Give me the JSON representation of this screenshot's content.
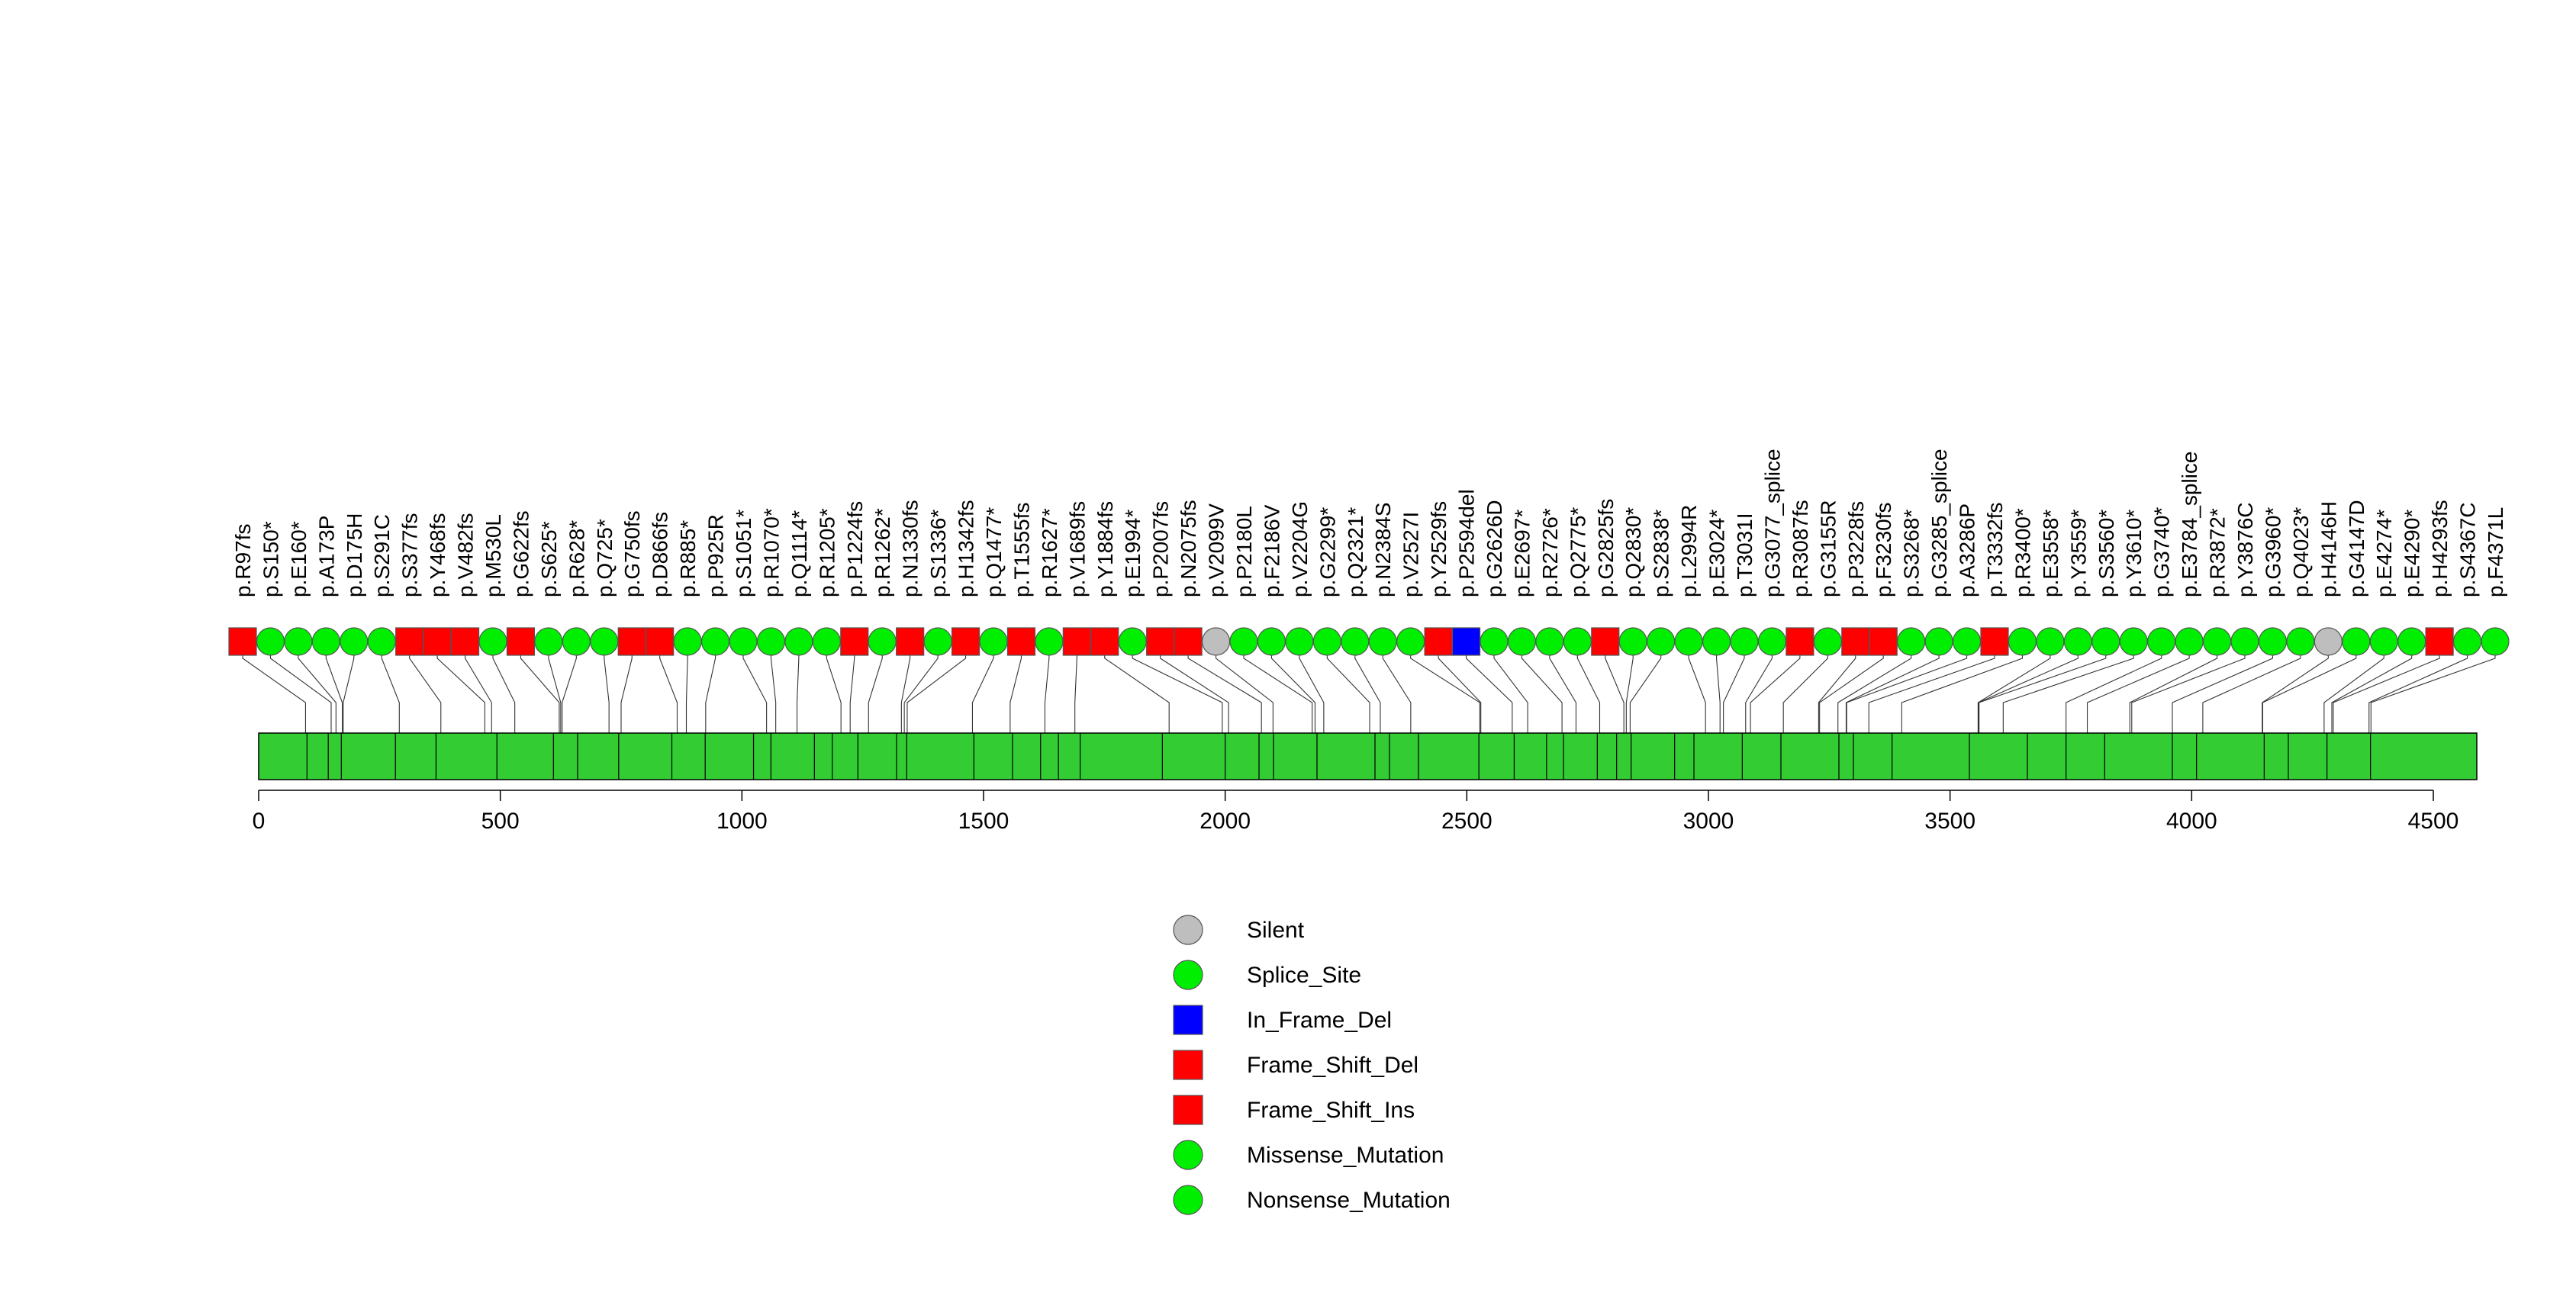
{
  "colors": {
    "Silent": "#BEBEBE",
    "Splice_Site": "#00EE00",
    "In_Frame_Del": "#0000FF",
    "Frame_Shift_Del": "#FF0000",
    "Frame_Shift_Ins": "#FF0000",
    "Missense_Mutation": "#00EE00",
    "Nonsense_Mutation": "#00EE00",
    "protein": "#33CC33"
  },
  "chart_data": {
    "type": "lollipop",
    "title": "",
    "xlabel": "",
    "ylabel": "",
    "xlim": [
      0,
      4590
    ],
    "protein_length": 4590,
    "xticks": [
      0,
      500,
      1000,
      1500,
      2000,
      2500,
      3000,
      3500,
      4000,
      4500
    ],
    "domain_boundaries": [
      100,
      144,
      171,
      283,
      367,
      493,
      610,
      660,
      745,
      855,
      924,
      1024,
      1060,
      1150,
      1187,
      1240,
      1320,
      1341,
      1480,
      1560,
      1618,
      1655,
      1700,
      1870,
      2000,
      2070,
      2100,
      2190,
      2310,
      2340,
      2400,
      2525,
      2598,
      2665,
      2700,
      2770,
      2810,
      2840,
      2930,
      2970,
      3070,
      3150,
      3270,
      3300,
      3380,
      3540,
      3660,
      3740,
      3820,
      3960,
      4010,
      4150,
      4200,
      4280,
      4370
    ],
    "legend": [
      {
        "label": "Silent",
        "shape": "circle",
        "color": "#BEBEBE"
      },
      {
        "label": "Splice_Site",
        "shape": "circle",
        "color": "#00EE00"
      },
      {
        "label": "In_Frame_Del",
        "shape": "square",
        "color": "#0000FF"
      },
      {
        "label": "Frame_Shift_Del",
        "shape": "square",
        "color": "#FF0000"
      },
      {
        "label": "Frame_Shift_Ins",
        "shape": "square",
        "color": "#FF0000"
      },
      {
        "label": "Missense_Mutation",
        "shape": "circle",
        "color": "#00EE00"
      },
      {
        "label": "Nonsense_Mutation",
        "shape": "circle",
        "color": "#00EE00"
      }
    ],
    "mutations": [
      {
        "label": "p.R97fs",
        "pos": 97,
        "type": "Frame_Shift_Del"
      },
      {
        "label": "p.S150*",
        "pos": 150,
        "type": "Nonsense_Mutation"
      },
      {
        "label": "p.E160*",
        "pos": 160,
        "type": "Nonsense_Mutation"
      },
      {
        "label": "p.A173P",
        "pos": 173,
        "type": "Missense_Mutation"
      },
      {
        "label": "p.D175H",
        "pos": 175,
        "type": "Missense_Mutation"
      },
      {
        "label": "p.S291C",
        "pos": 291,
        "type": "Missense_Mutation"
      },
      {
        "label": "p.S377fs",
        "pos": 377,
        "type": "Frame_Shift_Del"
      },
      {
        "label": "p.Y468fs",
        "pos": 468,
        "type": "Frame_Shift_Ins"
      },
      {
        "label": "p.V482fs",
        "pos": 482,
        "type": "Frame_Shift_Del"
      },
      {
        "label": "p.M530L",
        "pos": 530,
        "type": "Missense_Mutation"
      },
      {
        "label": "p.G622fs",
        "pos": 622,
        "type": "Frame_Shift_Del"
      },
      {
        "label": "p.S625*",
        "pos": 625,
        "type": "Nonsense_Mutation"
      },
      {
        "label": "p.R628*",
        "pos": 628,
        "type": "Nonsense_Mutation"
      },
      {
        "label": "p.Q725*",
        "pos": 725,
        "type": "Nonsense_Mutation"
      },
      {
        "label": "p.G750fs",
        "pos": 750,
        "type": "Frame_Shift_Del"
      },
      {
        "label": "p.D866fs",
        "pos": 866,
        "type": "Frame_Shift_Del"
      },
      {
        "label": "p.R885*",
        "pos": 885,
        "type": "Nonsense_Mutation"
      },
      {
        "label": "p.P925R",
        "pos": 925,
        "type": "Missense_Mutation"
      },
      {
        "label": "p.S1051*",
        "pos": 1051,
        "type": "Nonsense_Mutation"
      },
      {
        "label": "p.R1070*",
        "pos": 1070,
        "type": "Nonsense_Mutation"
      },
      {
        "label": "p.Q1114*",
        "pos": 1114,
        "type": "Nonsense_Mutation"
      },
      {
        "label": "p.R1205*",
        "pos": 1205,
        "type": "Nonsense_Mutation"
      },
      {
        "label": "p.P1224fs",
        "pos": 1224,
        "type": "Frame_Shift_Del"
      },
      {
        "label": "p.R1262*",
        "pos": 1262,
        "type": "Nonsense_Mutation"
      },
      {
        "label": "p.N1330fs",
        "pos": 1330,
        "type": "Frame_Shift_Del"
      },
      {
        "label": "p.S1336*",
        "pos": 1336,
        "type": "Nonsense_Mutation"
      },
      {
        "label": "p.H1342fs",
        "pos": 1342,
        "type": "Frame_Shift_Del"
      },
      {
        "label": "p.Q1477*",
        "pos": 1477,
        "type": "Nonsense_Mutation"
      },
      {
        "label": "p.T1555fs",
        "pos": 1555,
        "type": "Frame_Shift_Del"
      },
      {
        "label": "p.R1627*",
        "pos": 1627,
        "type": "Nonsense_Mutation"
      },
      {
        "label": "p.V1689fs",
        "pos": 1689,
        "type": "Frame_Shift_Del"
      },
      {
        "label": "p.Y1884fs",
        "pos": 1884,
        "type": "Frame_Shift_Ins"
      },
      {
        "label": "p.E1994*",
        "pos": 1994,
        "type": "Nonsense_Mutation"
      },
      {
        "label": "p.P2007fs",
        "pos": 2007,
        "type": "Frame_Shift_Del"
      },
      {
        "label": "p.N2075fs",
        "pos": 2075,
        "type": "Frame_Shift_Del"
      },
      {
        "label": "p.V2099V",
        "pos": 2099,
        "type": "Silent"
      },
      {
        "label": "p.P2180L",
        "pos": 2180,
        "type": "Missense_Mutation"
      },
      {
        "label": "p.F2186V",
        "pos": 2186,
        "type": "Missense_Mutation"
      },
      {
        "label": "p.V2204G",
        "pos": 2204,
        "type": "Missense_Mutation"
      },
      {
        "label": "p.G2299*",
        "pos": 2299,
        "type": "Nonsense_Mutation"
      },
      {
        "label": "p.Q2321*",
        "pos": 2321,
        "type": "Nonsense_Mutation"
      },
      {
        "label": "p.N2384S",
        "pos": 2384,
        "type": "Missense_Mutation"
      },
      {
        "label": "p.V2527I",
        "pos": 2527,
        "type": "Missense_Mutation"
      },
      {
        "label": "p.Y2529fs",
        "pos": 2529,
        "type": "Frame_Shift_Del"
      },
      {
        "label": "p.P2594del",
        "pos": 2594,
        "type": "In_Frame_Del"
      },
      {
        "label": "p.G2626D",
        "pos": 2626,
        "type": "Missense_Mutation"
      },
      {
        "label": "p.E2697*",
        "pos": 2697,
        "type": "Nonsense_Mutation"
      },
      {
        "label": "p.R2726*",
        "pos": 2726,
        "type": "Nonsense_Mutation"
      },
      {
        "label": "p.Q2775*",
        "pos": 2775,
        "type": "Nonsense_Mutation"
      },
      {
        "label": "p.G2825fs",
        "pos": 2825,
        "type": "Frame_Shift_Del"
      },
      {
        "label": "p.Q2830*",
        "pos": 2830,
        "type": "Nonsense_Mutation"
      },
      {
        "label": "p.S2838*",
        "pos": 2838,
        "type": "Nonsense_Mutation"
      },
      {
        "label": "p.L2994R",
        "pos": 2994,
        "type": "Missense_Mutation"
      },
      {
        "label": "p.E3024*",
        "pos": 3024,
        "type": "Nonsense_Mutation"
      },
      {
        "label": "p.T3031I",
        "pos": 3031,
        "type": "Missense_Mutation"
      },
      {
        "label": "p.G3077_splice",
        "pos": 3077,
        "type": "Splice_Site"
      },
      {
        "label": "p.R3087fs",
        "pos": 3087,
        "type": "Frame_Shift_Del"
      },
      {
        "label": "p.G3155R",
        "pos": 3155,
        "type": "Missense_Mutation"
      },
      {
        "label": "p.P3228fs",
        "pos": 3228,
        "type": "Frame_Shift_Del"
      },
      {
        "label": "p.F3230fs",
        "pos": 3230,
        "type": "Frame_Shift_Del"
      },
      {
        "label": "p.S3268*",
        "pos": 3268,
        "type": "Nonsense_Mutation"
      },
      {
        "label": "p.G3285_splice",
        "pos": 3285,
        "type": "Splice_Site"
      },
      {
        "label": "p.A3286P",
        "pos": 3286,
        "type": "Missense_Mutation"
      },
      {
        "label": "p.T3332fs",
        "pos": 3332,
        "type": "Frame_Shift_Del"
      },
      {
        "label": "p.R3400*",
        "pos": 3400,
        "type": "Nonsense_Mutation"
      },
      {
        "label": "p.E3558*",
        "pos": 3558,
        "type": "Nonsense_Mutation"
      },
      {
        "label": "p.Y3559*",
        "pos": 3559,
        "type": "Nonsense_Mutation"
      },
      {
        "label": "p.S3560*",
        "pos": 3560,
        "type": "Nonsense_Mutation"
      },
      {
        "label": "p.Y3610*",
        "pos": 3610,
        "type": "Nonsense_Mutation"
      },
      {
        "label": "p.G3740*",
        "pos": 3740,
        "type": "Nonsense_Mutation"
      },
      {
        "label": "p.E3784_splice",
        "pos": 3784,
        "type": "Splice_Site"
      },
      {
        "label": "p.R3872*",
        "pos": 3872,
        "type": "Nonsense_Mutation"
      },
      {
        "label": "p.Y3876C",
        "pos": 3876,
        "type": "Missense_Mutation"
      },
      {
        "label": "p.G3960*",
        "pos": 3960,
        "type": "Nonsense_Mutation"
      },
      {
        "label": "p.Q4023*",
        "pos": 4023,
        "type": "Nonsense_Mutation"
      },
      {
        "label": "p.H4146H",
        "pos": 4146,
        "type": "Silent"
      },
      {
        "label": "p.G4147D",
        "pos": 4147,
        "type": "Missense_Mutation"
      },
      {
        "label": "p.E4274*",
        "pos": 4274,
        "type": "Nonsense_Mutation"
      },
      {
        "label": "p.E4290*",
        "pos": 4290,
        "type": "Nonsense_Mutation"
      },
      {
        "label": "p.H4293fs",
        "pos": 4293,
        "type": "Frame_Shift_Del"
      },
      {
        "label": "p.S4367C",
        "pos": 4367,
        "type": "Missense_Mutation"
      },
      {
        "label": "p.F4371L",
        "pos": 4371,
        "type": "Missense_Mutation"
      }
    ]
  }
}
